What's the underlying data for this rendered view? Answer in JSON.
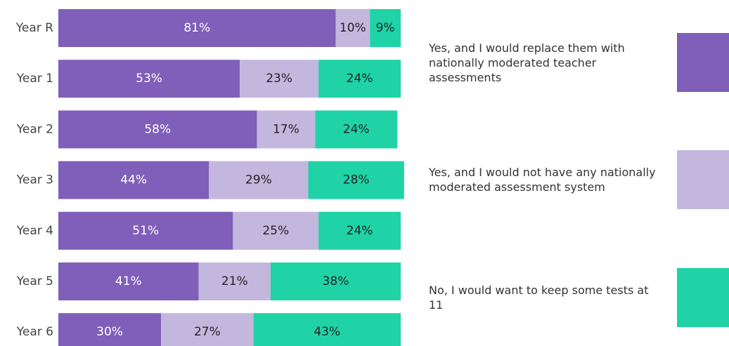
{
  "chart_data": {
    "type": "stacked_barh",
    "categories": [
      "Year R",
      "Year 1",
      "Year 2",
      "Year 3",
      "Year 4",
      "Year 5",
      "Year 6"
    ],
    "xlim": [
      0,
      100
    ],
    "series": [
      {
        "name": "Yes, and I would replace them with nationally moderated teacher assessments",
        "color": "#7f5fb9",
        "values": [
          81,
          53,
          58,
          44,
          51,
          41,
          30
        ],
        "value_labels": [
          "81%",
          "53%",
          "58%",
          "44%",
          "51%",
          "41%",
          "30%"
        ]
      },
      {
        "name": "Yes, and I would not have any nationally moderated assessment system",
        "color": "#c3b7de",
        "values": [
          10,
          23,
          17,
          29,
          25,
          21,
          27
        ],
        "value_labels": [
          "10%",
          "23%",
          "17%",
          "29%",
          "25%",
          "21%",
          "27%"
        ]
      },
      {
        "name": "No, I would want to keep some tests at 11",
        "color": "#1fd3a6",
        "values": [
          9,
          24,
          24,
          28,
          24,
          38,
          43
        ],
        "value_labels": [
          "9%",
          "24%",
          "24%",
          "28%",
          "24%",
          "38%",
          "43%"
        ]
      }
    ]
  }
}
